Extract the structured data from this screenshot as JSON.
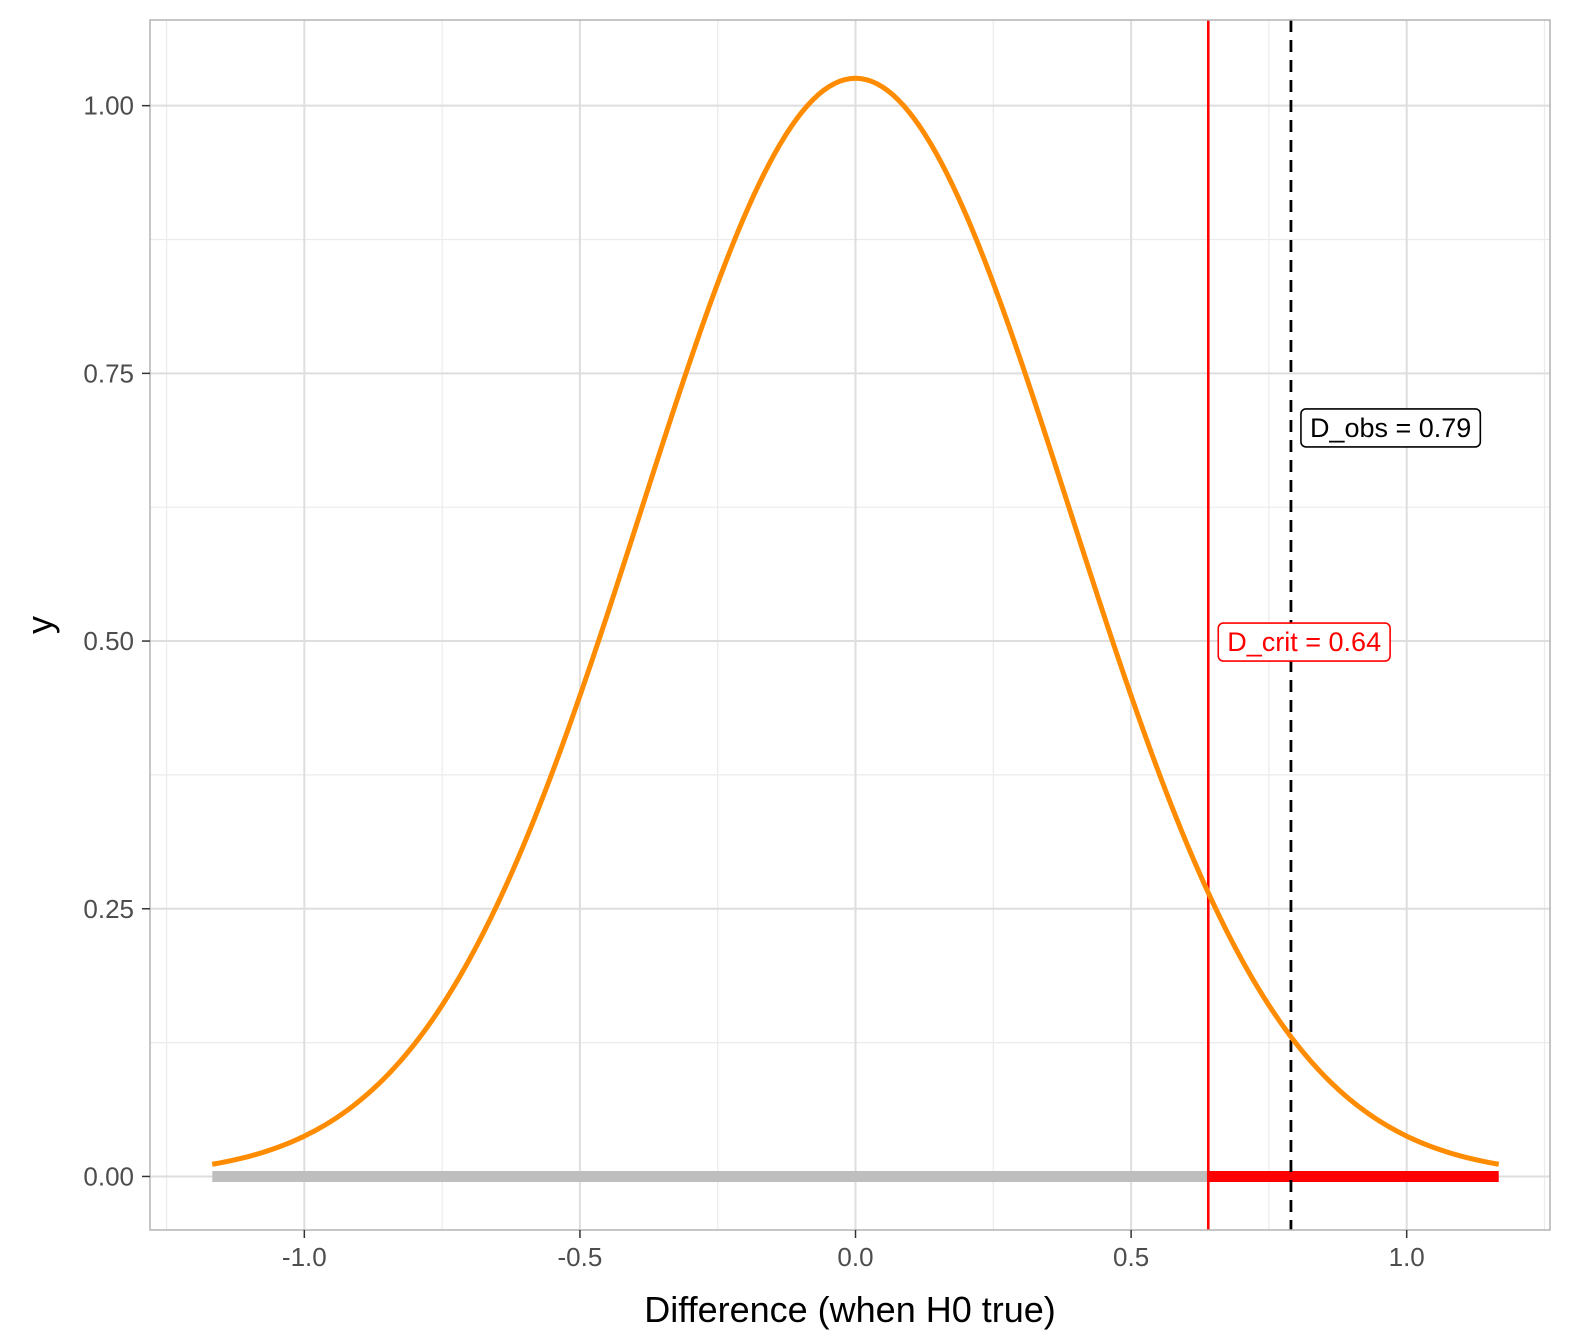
{
  "chart_data": {
    "type": "line",
    "title": "",
    "xlabel": "Difference (when H0 true)",
    "ylabel": "y",
    "xlim": [
      -1.28,
      1.26
    ],
    "ylim": [
      -0.05,
      1.08
    ],
    "x_ticks": [
      -1.0,
      -0.5,
      0.0,
      0.5,
      1.0
    ],
    "x_tick_labels": [
      "-1.0",
      "-0.5",
      "0.0",
      "0.5",
      "1.0"
    ],
    "y_ticks": [
      0.0,
      0.25,
      0.5,
      0.75,
      1.0
    ],
    "y_tick_labels": [
      "0.00",
      "0.25",
      "0.50",
      "0.75",
      "1.00"
    ],
    "grid": true,
    "series": [
      {
        "color": "#ff8c00",
        "distribution": "normal",
        "mean": 0,
        "sd": 0.389,
        "x_range": [
          -1.167,
          1.167
        ]
      }
    ],
    "segments": [
      {
        "x_start": -1.167,
        "x_end": 0.64,
        "y": 0,
        "color": "#bebebe"
      },
      {
        "x_start": 0.64,
        "x_end": 1.167,
        "y": 0,
        "color": "#ff0000"
      }
    ],
    "reference_lines": [
      {
        "x": 0.64,
        "color": "#ff0000",
        "style": "solid"
      },
      {
        "x": 0.79,
        "color": "#000000",
        "style": "dashed"
      }
    ],
    "annotations": [
      {
        "text": "D_crit = 0.64",
        "x": 0.64,
        "y": 0.5,
        "color": "#ff0000"
      },
      {
        "text": "D_obs = 0.79",
        "x": 0.79,
        "y": 0.7,
        "color": "#000000"
      }
    ]
  }
}
